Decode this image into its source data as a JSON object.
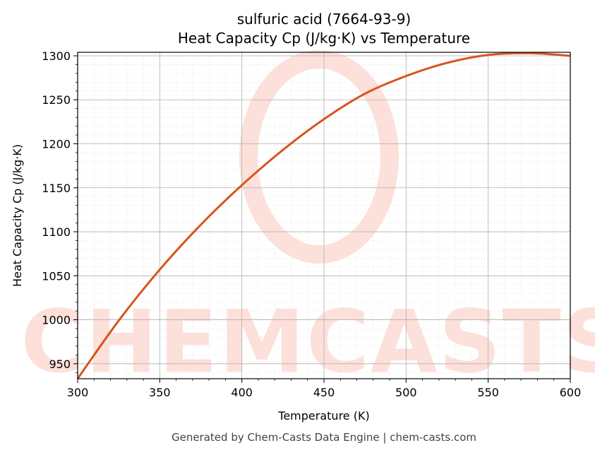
{
  "chart_data": {
    "type": "line",
    "title_line1": "sulfuric acid (7664-93-9)",
    "title_line2": "Heat Capacity Cp (J/kg·K) vs Temperature",
    "xlabel": "Temperature (K)",
    "ylabel": "Heat Capacity Cp (J/kg·K)",
    "xlim": [
      300,
      600
    ],
    "ylim": [
      933,
      1304
    ],
    "x_ticks": [
      300,
      350,
      400,
      450,
      500,
      550,
      600
    ],
    "y_ticks": [
      950,
      1000,
      1050,
      1100,
      1150,
      1200,
      1250,
      1300
    ],
    "grid": true,
    "series": [
      {
        "color": "#d9541e",
        "x": [
          300,
          325,
          350,
          375,
          400,
          425,
          450,
          475,
          500,
          525,
          550,
          575,
          600
        ],
        "y": [
          933,
          999,
          1057,
          1108,
          1153,
          1193,
          1228,
          1257,
          1277,
          1292,
          1301,
          1303,
          1300
        ]
      }
    ]
  },
  "watermark": {
    "text": "CHEMCASTS",
    "color": "#fde0da"
  },
  "footer": "Generated by Chem-Casts Data Engine | chem-casts.com"
}
